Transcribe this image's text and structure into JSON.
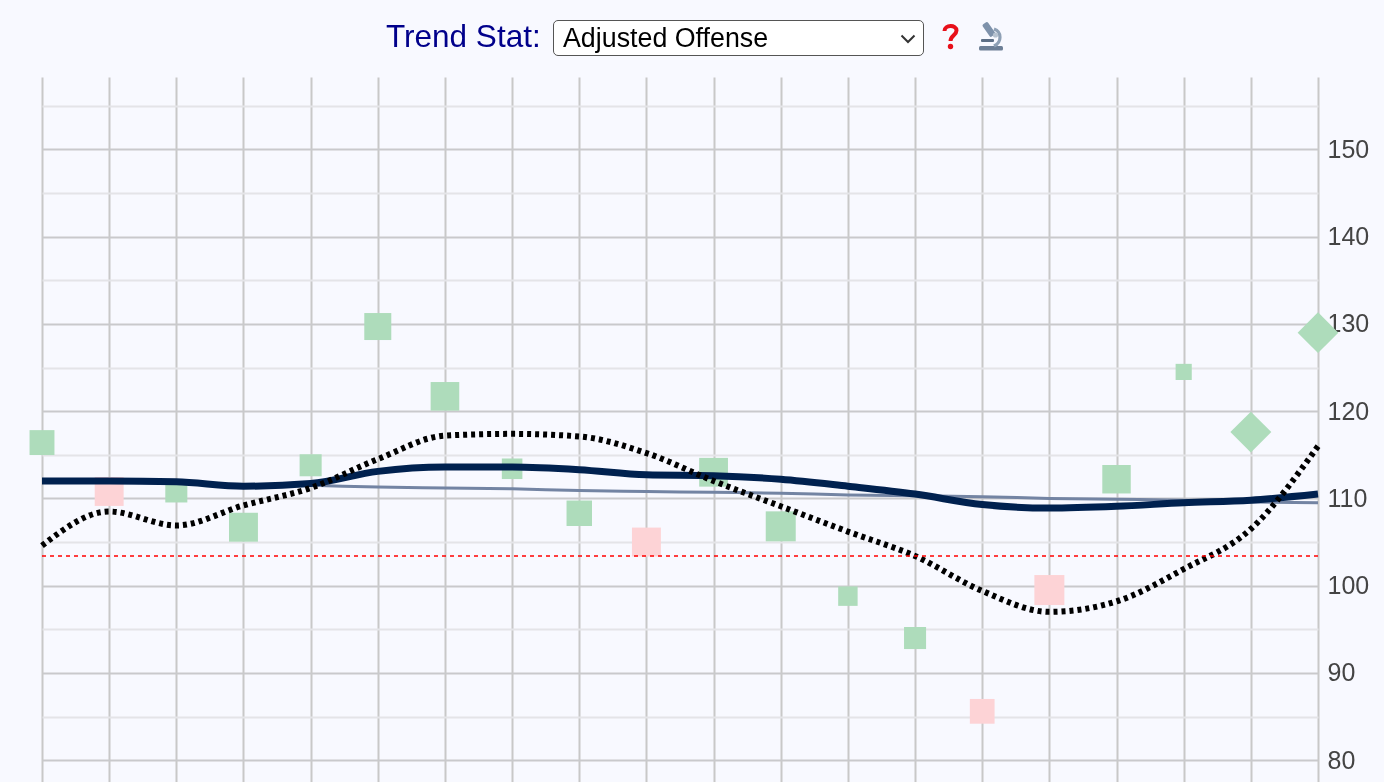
{
  "chart_data": {
    "type": "bubble",
    "title": "Trend Stat:",
    "subtitle": "Adjusted Offense",
    "categories": [
      null,
      null,
      null,
      null,
      null,
      null,
      null,
      null,
      null,
      null,
      null,
      null,
      null,
      null,
      null,
      null,
      null,
      null,
      null,
      null
    ],
    "ylim": [
      77.5,
      158.3
    ],
    "yticks": [
      80,
      {
        "value": 85,
        "label": null
      },
      90,
      {
        "value": 95,
        "label": null
      },
      100,
      {
        "value": 105,
        "label": null
      },
      110,
      {
        "value": 115,
        "label": null
      },
      120,
      {
        "value": 125,
        "label": null
      },
      130,
      {
        "value": 135,
        "label": null
      },
      140,
      {
        "value": 145,
        "label": null
      },
      150,
      {
        "value": 155,
        "label": null
      }
    ],
    "grid": true,
    "tick_labels": "y",
    "series": [
      {
        "type": "line",
        "color": "#7384a3",
        "values": [
          112.0,
          111.9,
          111.7,
          111.6,
          111.5,
          111.3,
          111.2,
          111.1,
          110.9,
          110.8,
          110.7,
          110.6,
          110.4,
          110.3,
          110.2,
          110.0,
          109.9,
          109.8,
          109.6,
          109.5
        ]
      },
      {
        "type": "line",
        "color": "#00214f",
        "values": [
          112.0,
          112.0,
          111.9,
          111.4,
          111.7,
          113.1,
          113.6,
          113.6,
          113.3,
          112.7,
          112.6,
          112.2,
          111.4,
          110.5,
          109.3,
          108.9,
          109.1,
          109.5,
          109.8,
          110.5
        ]
      },
      {
        "marker": "square",
        "color": "#aedcbb",
        "values": [
          116.4,
          null,
          110.8,
          106.7,
          113.8,
          129.7,
          121.7,
          113.4,
          108.3,
          null,
          113.0,
          106.8,
          98.8,
          94.0,
          null,
          null,
          112.2,
          124.5,
          null,
          null
        ],
        "sizes": [
          0.69,
          null,
          0.54,
          0.93,
          0.54,
          0.81,
          0.91,
          0.47,
          0.72,
          null,
          0.92,
          1,
          0.42,
          0.54,
          null,
          null,
          0.9,
          0.29,
          null,
          null
        ]
      },
      {
        "marker": "square",
        "color": "#fdd3d6",
        "values": [
          null,
          110.8,
          null,
          null,
          null,
          null,
          null,
          null,
          null,
          105.0,
          null,
          null,
          null,
          null,
          85.6,
          99.5,
          null,
          null,
          null,
          null
        ],
        "sizes": [
          null,
          0.93,
          null,
          null,
          null,
          null,
          null,
          null,
          null,
          0.93,
          null,
          null,
          null,
          null,
          0.68,
          1,
          null,
          null,
          null,
          null
        ]
      },
      {
        "marker": "diamond",
        "color": "#aedcbb",
        "values": [
          null,
          null,
          null,
          null,
          null,
          null,
          null,
          null,
          null,
          null,
          null,
          null,
          null,
          null,
          null,
          null,
          null,
          null,
          117.6,
          129.0
        ],
        "sizes": [
          null,
          null,
          null,
          null,
          null,
          null,
          null,
          null,
          null,
          null,
          null,
          null,
          null,
          null,
          null,
          null,
          null,
          null,
          0.93,
          0.92
        ]
      },
      {
        "type": "line",
        "color": "#000000",
        "line_style": "dotted",
        "values": [
          104.6,
          108.5,
          106.9,
          109.2,
          111.2,
          114.5,
          117.2,
          117.4,
          117.1,
          115.2,
          112.0,
          109.1,
          106.2,
          103.4,
          99.4,
          97.0,
          98.2,
          101.9,
          106.5,
          116.0
        ]
      }
    ],
    "ref_lines": [
      {
        "axis": "y",
        "value": 103.4,
        "color": "#ff0000",
        "line_style": "dotted"
      }
    ]
  }
}
